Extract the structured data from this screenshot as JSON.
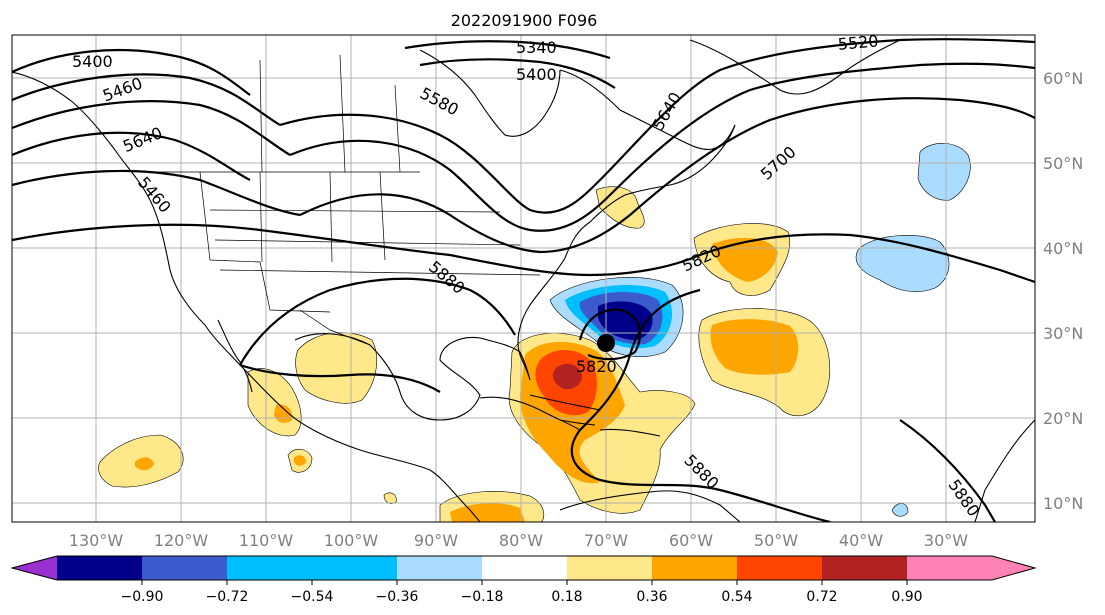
{
  "title": "2022091900 F096",
  "lon_labels": [
    "130°W",
    "120°W",
    "110°W",
    "100°W",
    "90°W",
    "80°W",
    "70°W",
    "60°W",
    "50°W",
    "40°W",
    "30°W"
  ],
  "lat_labels": [
    "60°N",
    "50°N",
    "40°N",
    "30°N",
    "20°N",
    "10°N"
  ],
  "colorbar": {
    "ticks": [
      "−0.90",
      "−0.72",
      "−0.54",
      "−0.36",
      "−0.18",
      "0.18",
      "0.36",
      "0.54",
      "0.72",
      "0.90"
    ],
    "colors": [
      "#9b30d0",
      "#00008b",
      "#3b5bcc",
      "#00bfff",
      "#aadcff",
      "#ffffff",
      "#ffe88a",
      "#ffa500",
      "#ff4500",
      "#b22222",
      "#ff82b4"
    ]
  },
  "contour_labels": [
    {
      "id": "c5400w",
      "text": "5400"
    },
    {
      "id": "c5460w",
      "text": "5460"
    },
    {
      "id": "c5640w",
      "text": "5640"
    },
    {
      "id": "c5460s",
      "text": "5460"
    },
    {
      "id": "c5580",
      "text": "5580"
    },
    {
      "id": "c5340",
      "text": "5340"
    },
    {
      "id": "c5400c",
      "text": "5400"
    },
    {
      "id": "c5520",
      "text": "5520"
    },
    {
      "id": "c5640e",
      "text": "5640"
    },
    {
      "id": "c5700",
      "text": "5700"
    },
    {
      "id": "c5820e",
      "text": "5820"
    },
    {
      "id": "c5880w",
      "text": "5880"
    },
    {
      "id": "c5820low",
      "text": "5820"
    },
    {
      "id": "c5880s",
      "text": "5880"
    },
    {
      "id": "c5880se",
      "text": "5880"
    }
  ],
  "storm_marker": {
    "label": "",
    "lon_deg_w": 70.7,
    "lat_deg_n": 29.0
  }
}
